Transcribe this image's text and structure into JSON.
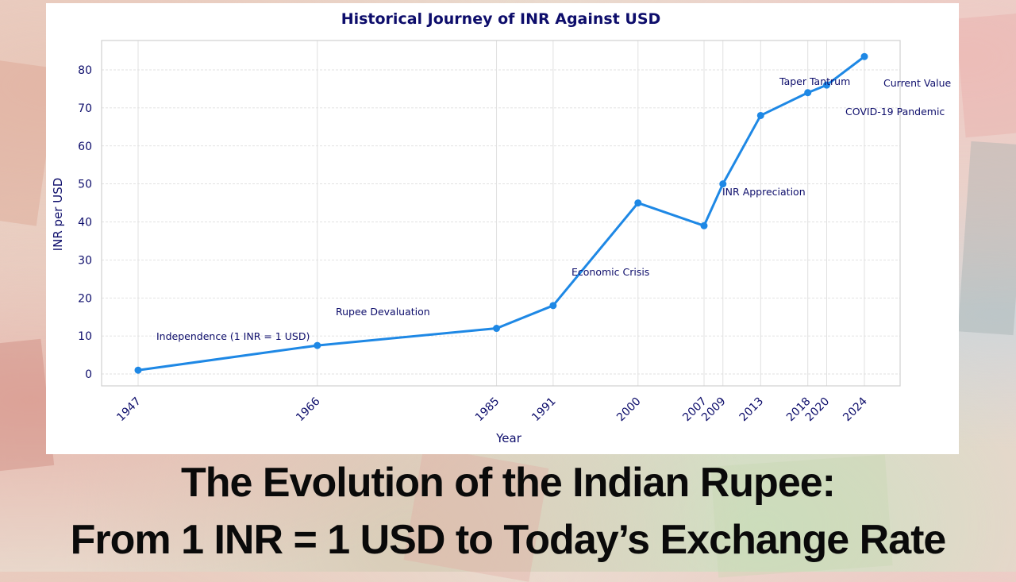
{
  "chart_data": {
    "type": "line",
    "title": "Historical Journey of INR Against USD",
    "xlabel": "Year",
    "ylabel": "INR per USD",
    "x": [
      1947,
      1966,
      1985,
      1991,
      2000,
      2007,
      2009,
      2013,
      2018,
      2020,
      2024
    ],
    "values": [
      1,
      7.5,
      12,
      18,
      45,
      39,
      50,
      68,
      74,
      76,
      83.5
    ],
    "series": [
      {
        "name": "INR per USD",
        "color": "#1e88e5",
        "values": [
          1,
          7.5,
          12,
          18,
          45,
          39,
          50,
          68,
          74,
          76,
          83.5
        ]
      }
    ],
    "xticks": [
      "1947",
      "1966",
      "1985",
      "1991",
      "2000",
      "2007",
      "2009",
      "2013",
      "2018",
      "2020",
      "2024"
    ],
    "yticks": [
      "0",
      "10",
      "20",
      "30",
      "40",
      "50",
      "60",
      "70",
      "80"
    ],
    "ylim": [
      -3,
      88
    ],
    "grid": true,
    "annotations": [
      {
        "text": "Independence (1 INR = 1 USD)",
        "x": 1947,
        "y": 1
      },
      {
        "text": "Rupee Devaluation",
        "x": 1966,
        "y": 7.5
      },
      {
        "text": "Economic Crisis",
        "x": 1991,
        "y": 18
      },
      {
        "text": "INR Appreciation",
        "x": 2009,
        "y": 50
      },
      {
        "text": "Taper Tantrum",
        "x": 2013,
        "y": 68
      },
      {
        "text": "COVID-19 Pandemic",
        "x": 2020,
        "y": 76
      },
      {
        "text": "Current Value",
        "x": 2024,
        "y": 83.5
      }
    ]
  },
  "headline": {
    "line1": "The Evolution of the Indian Rupee:",
    "line2": "From 1 INR = 1 USD to Today’s Exchange Rate"
  }
}
